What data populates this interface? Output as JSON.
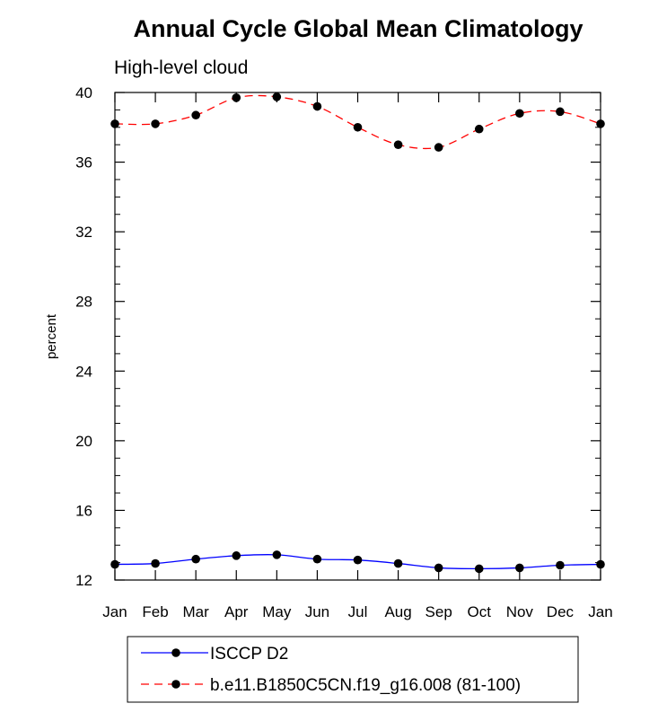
{
  "chart_data": {
    "type": "line",
    "title": "Annual Cycle Global Mean Climatology",
    "subtitle": "High-level cloud",
    "xlabel": "",
    "ylabel": "percent",
    "ylim": [
      12,
      40
    ],
    "yticks": [
      12,
      16,
      20,
      24,
      28,
      32,
      36,
      40
    ],
    "y_minor_step": 1,
    "categories": [
      "Jan",
      "Feb",
      "Mar",
      "Apr",
      "May",
      "Jun",
      "Jul",
      "Aug",
      "Sep",
      "Oct",
      "Nov",
      "Dec",
      "Jan"
    ],
    "grid": false,
    "legend_position": "bottom",
    "series": [
      {
        "name": "ISCCP D2",
        "color": "#0000ff",
        "line_style": "solid",
        "marker": "circle",
        "values": [
          12.9,
          12.95,
          13.2,
          13.4,
          13.45,
          13.2,
          13.15,
          12.95,
          12.7,
          12.65,
          12.7,
          12.85,
          12.9
        ]
      },
      {
        "name": "b.e11.B1850C5CN.f19_g16.008 (81-100)",
        "color": "#ff0000",
        "line_style": "dashed",
        "marker": "circle",
        "values": [
          38.2,
          38.2,
          38.7,
          39.7,
          39.75,
          39.2,
          38.0,
          37.0,
          36.85,
          37.9,
          38.8,
          38.9,
          38.2
        ]
      }
    ]
  }
}
